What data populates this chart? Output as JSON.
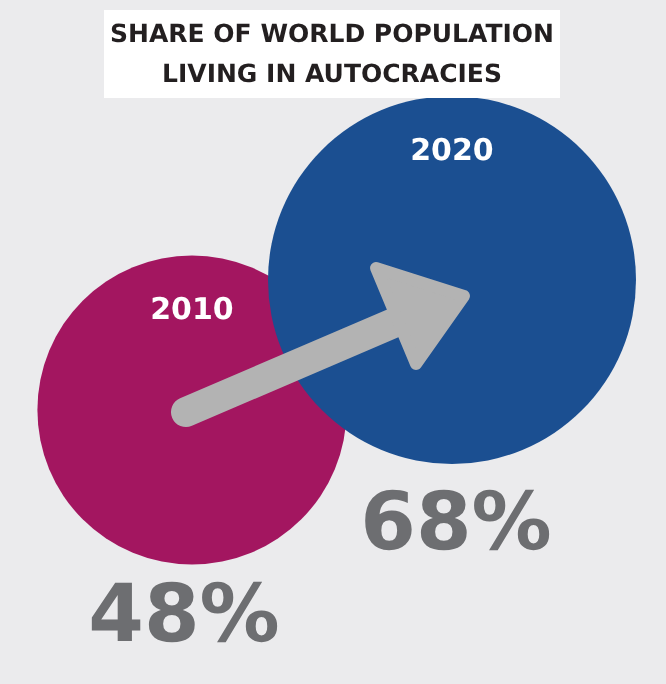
{
  "chart_data": {
    "type": "other",
    "title": "SHARE OF WORLD POPULATION LIVING IN AUTOCRACIES",
    "categories": [
      "2010",
      "2020"
    ],
    "values": [
      48,
      68
    ],
    "colors": [
      "#a31660",
      "#1b4f91"
    ],
    "value_labels": [
      "48%",
      "68%"
    ]
  }
}
